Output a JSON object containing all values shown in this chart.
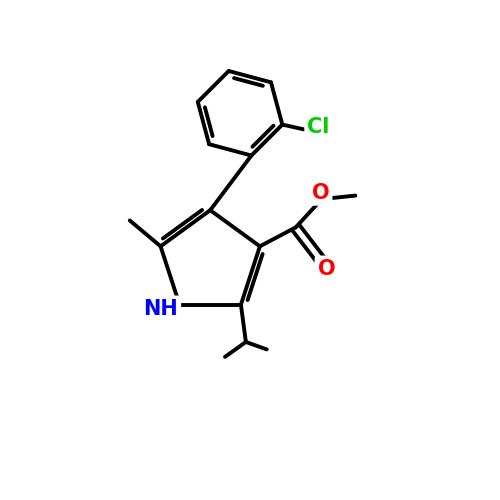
{
  "bg_color": "#ffffff",
  "bond_color": "#000000",
  "bond_width": 2.8,
  "atom_colors": {
    "N": "#0000ff",
    "O": "#ff0000",
    "Cl": "#00cc00",
    "C": "#000000",
    "H": "#000000"
  }
}
